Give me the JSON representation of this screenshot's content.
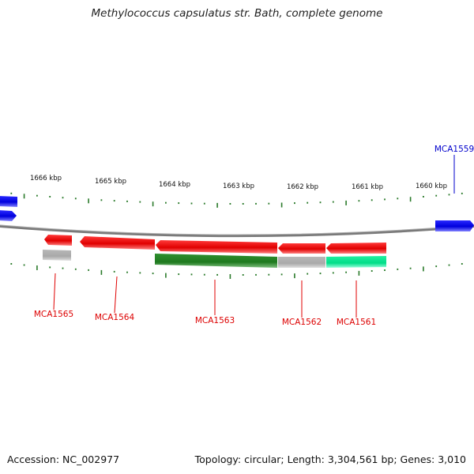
{
  "title": "Methylococcus capsulatus str. Bath, complete genome",
  "footer": {
    "accession": "Accession: NC_002977",
    "summary": "Topology: circular; Length: 3,304,561 bp; Genes: 3,010"
  },
  "scale": {
    "labels": [
      "1666 kbp",
      "1665 kbp",
      "1664 kbp",
      "1663 kbp",
      "1662 kbp",
      "1661 kbp",
      "1660 kbp"
    ]
  },
  "colors": {
    "forward_gene": "#0a0aee",
    "reverse_gene": "#ee0a0a",
    "backbone": "#888888",
    "ticks": "#2a7a2a",
    "cog_green": "#2a8a2a",
    "cog_gray": "#bbbbbb",
    "cog_teal": "#22ee99"
  },
  "genes": [
    {
      "id": "MCA1565",
      "strand": "reverse"
    },
    {
      "id": "MCA1564",
      "strand": "reverse"
    },
    {
      "id": "MCA1563",
      "strand": "reverse"
    },
    {
      "id": "MCA1562",
      "strand": "reverse"
    },
    {
      "id": "MCA1561",
      "strand": "reverse"
    },
    {
      "id": "MCA1559",
      "strand": "forward"
    }
  ]
}
